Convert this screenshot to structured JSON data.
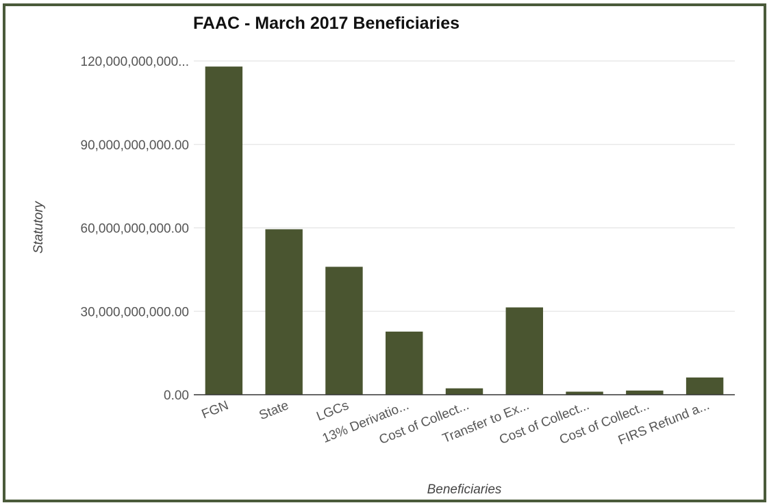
{
  "chart_data": {
    "type": "bar",
    "title": "FAAC - March 2017 Beneficiaries",
    "xlabel": "Beneficiaries",
    "ylabel": "Statutory",
    "ylim": [
      0,
      120000000000
    ],
    "ytick_values": [
      0,
      30000000000,
      60000000000,
      90000000000,
      120000000000
    ],
    "ytick_labels": [
      "0.00",
      "30,000,000,000.00",
      "60,000,000,000.00",
      "90,000,000,000.00",
      "120,000,000,000..."
    ],
    "categories": [
      "FGN",
      "State",
      "LGCs",
      "13% Derivatio...",
      "Cost of Collect...",
      "Transfer to Ex...",
      "Cost of Collect...",
      "Cost of Collect...",
      "FIRS Refund a..."
    ],
    "values": [
      118000000000,
      59500000000,
      46000000000,
      22700000000,
      2300000000,
      31400000000,
      1100000000,
      1500000000,
      6200000000
    ],
    "grid": true,
    "bar_color": "#4a5530"
  }
}
